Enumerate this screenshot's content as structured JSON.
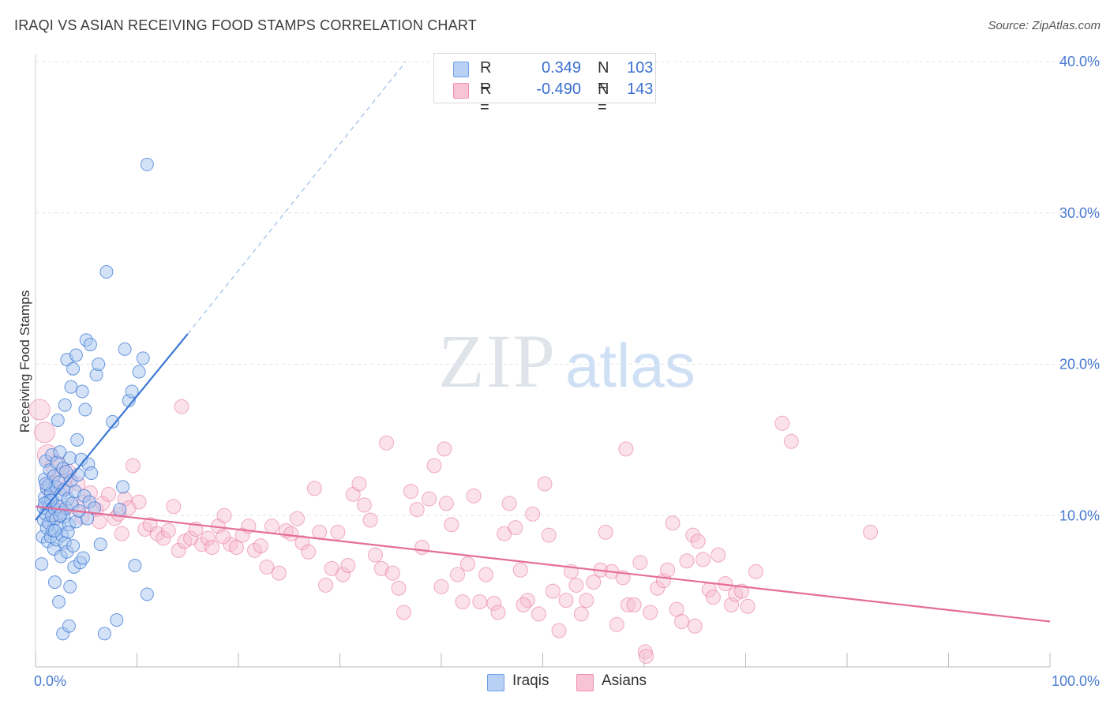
{
  "header": {
    "title": "IRAQI VS ASIAN RECEIVING FOOD STAMPS CORRELATION CHART",
    "source": "Source: ZipAtlas.com"
  },
  "watermark": {
    "zip": "ZIP",
    "atlas": "atlas"
  },
  "legend": {
    "rows": [
      {
        "r_label": "R =",
        "r_value": "0.349",
        "n_label": "N =",
        "n_value": "103",
        "color": "#6fa1e8",
        "fill": "#b9d0f5"
      },
      {
        "r_label": "R =",
        "r_value": "-0.490",
        "n_label": "N =",
        "n_value": "143",
        "color": "#ef8fb0",
        "fill": "#f8c3d5"
      }
    ]
  },
  "bottom_legend": [
    "Iraqis",
    "Asians"
  ],
  "chart_data": {
    "type": "scatter",
    "title": "IRAQI VS ASIAN RECEIVING FOOD STAMPS CORRELATION CHART",
    "xlabel": "",
    "ylabel": "Receiving Food Stamps",
    "xlim": [
      0,
      100
    ],
    "ylim": [
      0,
      40
    ],
    "x_tick_labels": [
      "0.0%",
      "100.0%"
    ],
    "y_ticks": [
      10,
      20,
      30,
      40
    ],
    "y_tick_labels": [
      "10.0%",
      "20.0%",
      "30.0%",
      "40.0%"
    ],
    "series": [
      {
        "name": "Iraqis",
        "color": "#3b78d4",
        "fill": "#a9c6f0",
        "r": 0.349,
        "n": 103,
        "trend": {
          "x0": 0.0,
          "y0": 9.7,
          "x1": 15.0,
          "y1": 22.0,
          "dashed_to_x": 36.5,
          "dashed_to_y": 40.0
        },
        "points": [
          [
            0.6,
            6.8
          ],
          [
            0.7,
            8.6
          ],
          [
            0.8,
            9.7
          ],
          [
            0.8,
            10.5
          ],
          [
            0.9,
            11.2
          ],
          [
            0.9,
            12.4
          ],
          [
            1.0,
            10.1
          ],
          [
            1.0,
            13.6
          ],
          [
            1.1,
            9.2
          ],
          [
            1.1,
            11.8
          ],
          [
            1.2,
            8.3
          ],
          [
            1.2,
            10.9
          ],
          [
            1.3,
            12.0
          ],
          [
            1.3,
            9.5
          ],
          [
            1.4,
            10.7
          ],
          [
            1.4,
            13.0
          ],
          [
            1.5,
            11.5
          ],
          [
            1.5,
            8.6
          ],
          [
            1.6,
            10.0
          ],
          [
            1.6,
            14.0
          ],
          [
            1.7,
            9.0
          ],
          [
            1.7,
            11.0
          ],
          [
            1.8,
            12.6
          ],
          [
            1.8,
            7.8
          ],
          [
            1.9,
            10.4
          ],
          [
            1.9,
            5.6
          ],
          [
            2.0,
            9.8
          ],
          [
            2.0,
            11.9
          ],
          [
            2.1,
            13.5
          ],
          [
            2.1,
            8.4
          ],
          [
            2.2,
            10.6
          ],
          [
            2.2,
            16.3
          ],
          [
            2.3,
            4.3
          ],
          [
            2.3,
            12.2
          ],
          [
            2.4,
            9.3
          ],
          [
            2.4,
            14.2
          ],
          [
            2.5,
            11.4
          ],
          [
            2.5,
            7.3
          ],
          [
            2.6,
            10.2
          ],
          [
            2.6,
            8.7
          ],
          [
            2.7,
            13.1
          ],
          [
            2.7,
            2.2
          ],
          [
            2.8,
            11.7
          ],
          [
            2.8,
            9.9
          ],
          [
            2.9,
            17.3
          ],
          [
            2.9,
            8.2
          ],
          [
            3.0,
            12.9
          ],
          [
            3.0,
            10.5
          ],
          [
            3.1,
            20.3
          ],
          [
            3.1,
            7.6
          ],
          [
            3.2,
            11.1
          ],
          [
            3.3,
            2.7
          ],
          [
            3.3,
            9.4
          ],
          [
            3.4,
            13.8
          ],
          [
            3.4,
            5.3
          ],
          [
            3.5,
            12.3
          ],
          [
            3.5,
            18.5
          ],
          [
            3.6,
            10.8
          ],
          [
            3.7,
            8.0
          ],
          [
            3.7,
            19.7
          ],
          [
            3.8,
            6.6
          ],
          [
            3.9,
            11.6
          ],
          [
            4.0,
            9.6
          ],
          [
            4.0,
            20.6
          ],
          [
            4.1,
            15.0
          ],
          [
            4.2,
            12.7
          ],
          [
            4.3,
            10.3
          ],
          [
            4.4,
            6.9
          ],
          [
            4.5,
            13.7
          ],
          [
            4.6,
            18.2
          ],
          [
            4.7,
            7.2
          ],
          [
            4.8,
            11.3
          ],
          [
            4.9,
            17.0
          ],
          [
            5.0,
            21.6
          ],
          [
            5.1,
            9.8
          ],
          [
            5.2,
            13.4
          ],
          [
            5.3,
            10.9
          ],
          [
            5.4,
            21.3
          ],
          [
            5.5,
            12.8
          ],
          [
            5.8,
            10.5
          ],
          [
            6.0,
            19.3
          ],
          [
            6.2,
            20.0
          ],
          [
            6.4,
            8.1
          ],
          [
            6.8,
            2.2
          ],
          [
            7.0,
            26.1
          ],
          [
            7.6,
            16.2
          ],
          [
            8.0,
            3.1
          ],
          [
            8.3,
            10.4
          ],
          [
            8.6,
            11.9
          ],
          [
            8.8,
            21.0
          ],
          [
            9.2,
            17.6
          ],
          [
            9.5,
            18.2
          ],
          [
            9.8,
            6.7
          ],
          [
            10.2,
            19.5
          ],
          [
            10.6,
            20.4
          ],
          [
            11.0,
            33.2
          ],
          [
            11.0,
            4.8
          ],
          [
            1.5,
            11.0
          ],
          [
            2.4,
            10.0
          ],
          [
            3.2,
            8.9
          ],
          [
            1.0,
            12.1
          ],
          [
            1.9,
            9.0
          ],
          [
            0.9,
            10.8
          ]
        ]
      },
      {
        "name": "Asians",
        "color": "#e56d97",
        "fill": "#f7bcd0",
        "r": -0.49,
        "n": 143,
        "trend": {
          "x0": 0.0,
          "y0": 10.6,
          "x1": 100.0,
          "y1": 3.0
        },
        "points": [
          [
            0.4,
            17.0
          ],
          [
            0.9,
            15.5
          ],
          [
            1.2,
            14.0
          ],
          [
            2.0,
            13.3
          ],
          [
            2.6,
            12.5
          ],
          [
            3.0,
            11.8
          ],
          [
            3.6,
            10.6
          ],
          [
            4.2,
            12.1
          ],
          [
            4.8,
            10.9
          ],
          [
            5.4,
            11.5
          ],
          [
            6.0,
            10.4
          ],
          [
            6.6,
            10.8
          ],
          [
            7.2,
            11.4
          ],
          [
            7.8,
            9.8
          ],
          [
            8.2,
            10.1
          ],
          [
            8.8,
            11.1
          ],
          [
            9.2,
            10.5
          ],
          [
            9.6,
            13.3
          ],
          [
            10.2,
            10.9
          ],
          [
            10.8,
            9.1
          ],
          [
            11.3,
            9.4
          ],
          [
            12.0,
            8.8
          ],
          [
            12.6,
            8.5
          ],
          [
            13.1,
            9.0
          ],
          [
            13.6,
            10.6
          ],
          [
            14.1,
            7.7
          ],
          [
            14.7,
            8.3
          ],
          [
            15.3,
            8.5
          ],
          [
            15.8,
            9.1
          ],
          [
            16.4,
            8.1
          ],
          [
            17.0,
            8.5
          ],
          [
            17.4,
            7.9
          ],
          [
            18.0,
            9.3
          ],
          [
            18.6,
            10.0
          ],
          [
            19.2,
            8.1
          ],
          [
            19.8,
            7.9
          ],
          [
            20.4,
            8.7
          ],
          [
            21.0,
            9.3
          ],
          [
            21.6,
            7.7
          ],
          [
            22.2,
            8.0
          ],
          [
            22.8,
            6.6
          ],
          [
            23.3,
            9.3
          ],
          [
            24.0,
            6.2
          ],
          [
            24.7,
            9.0
          ],
          [
            25.2,
            8.8
          ],
          [
            25.8,
            9.8
          ],
          [
            26.3,
            8.2
          ],
          [
            26.9,
            7.6
          ],
          [
            27.5,
            11.8
          ],
          [
            28.0,
            8.9
          ],
          [
            28.6,
            5.4
          ],
          [
            29.2,
            6.5
          ],
          [
            29.8,
            8.9
          ],
          [
            30.3,
            6.1
          ],
          [
            30.8,
            6.7
          ],
          [
            31.3,
            11.4
          ],
          [
            31.9,
            12.1
          ],
          [
            32.4,
            10.7
          ],
          [
            33.0,
            9.7
          ],
          [
            33.5,
            7.4
          ],
          [
            34.1,
            6.5
          ],
          [
            34.6,
            14.8
          ],
          [
            35.2,
            6.2
          ],
          [
            35.8,
            5.2
          ],
          [
            36.3,
            3.6
          ],
          [
            37.0,
            11.6
          ],
          [
            37.6,
            10.4
          ],
          [
            38.1,
            7.9
          ],
          [
            38.8,
            11.1
          ],
          [
            39.3,
            13.3
          ],
          [
            40.0,
            5.3
          ],
          [
            40.5,
            10.8
          ],
          [
            41.0,
            9.4
          ],
          [
            41.6,
            6.1
          ],
          [
            42.1,
            4.3
          ],
          [
            42.6,
            6.8
          ],
          [
            43.2,
            11.3
          ],
          [
            43.8,
            4.3
          ],
          [
            44.4,
            6.1
          ],
          [
            45.2,
            4.2
          ],
          [
            45.6,
            3.6
          ],
          [
            46.2,
            8.8
          ],
          [
            46.7,
            10.8
          ],
          [
            47.3,
            9.2
          ],
          [
            47.8,
            6.4
          ],
          [
            48.5,
            4.4
          ],
          [
            49.0,
            10.1
          ],
          [
            49.6,
            3.5
          ],
          [
            50.2,
            12.1
          ],
          [
            50.6,
            8.7
          ],
          [
            51.0,
            5.0
          ],
          [
            51.6,
            2.4
          ],
          [
            52.3,
            4.4
          ],
          [
            52.8,
            6.3
          ],
          [
            53.3,
            5.4
          ],
          [
            53.8,
            3.5
          ],
          [
            54.3,
            4.4
          ],
          [
            55.0,
            5.6
          ],
          [
            55.7,
            6.4
          ],
          [
            56.2,
            8.9
          ],
          [
            56.8,
            6.3
          ],
          [
            57.3,
            2.8
          ],
          [
            57.9,
            5.9
          ],
          [
            58.4,
            4.1
          ],
          [
            59.0,
            4.1
          ],
          [
            59.6,
            6.9
          ],
          [
            60.1,
            1.0
          ],
          [
            60.6,
            3.6
          ],
          [
            61.3,
            5.2
          ],
          [
            61.9,
            5.7
          ],
          [
            62.3,
            6.4
          ],
          [
            62.8,
            9.5
          ],
          [
            63.2,
            3.8
          ],
          [
            63.7,
            3.0
          ],
          [
            64.2,
            7.0
          ],
          [
            64.8,
            8.7
          ],
          [
            65.3,
            8.3
          ],
          [
            65.8,
            7.1
          ],
          [
            66.4,
            5.1
          ],
          [
            66.8,
            4.6
          ],
          [
            67.3,
            7.4
          ],
          [
            68.0,
            5.5
          ],
          [
            68.6,
            4.1
          ],
          [
            69.0,
            4.8
          ],
          [
            69.6,
            5.0
          ],
          [
            70.2,
            4.0
          ],
          [
            71.0,
            6.3
          ],
          [
            1.5,
            11.9
          ],
          [
            2.1,
            10.2
          ],
          [
            3.3,
            12.9
          ],
          [
            4.6,
            9.9
          ],
          [
            6.3,
            9.6
          ],
          [
            8.5,
            8.8
          ],
          [
            14.4,
            17.2
          ],
          [
            18.5,
            8.6
          ],
          [
            40.3,
            14.4
          ],
          [
            48.1,
            4.1
          ],
          [
            58.2,
            14.4
          ],
          [
            60.2,
            0.7
          ],
          [
            65.0,
            2.7
          ],
          [
            73.6,
            16.1
          ],
          [
            82.3,
            8.9
          ],
          [
            74.5,
            14.9
          ]
        ]
      }
    ]
  }
}
